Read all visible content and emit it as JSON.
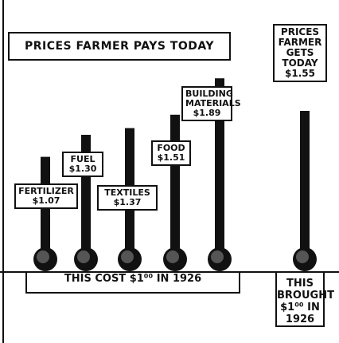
{
  "chart_data": {
    "type": "bar",
    "title": "PRICES FARMER PAYS TODAY",
    "categories": [
      "FERTILIZER",
      "FUEL",
      "TEXTILES",
      "FOOD",
      "BUILDING MATERIALS"
    ],
    "values": [
      1.07,
      1.3,
      1.37,
      1.51,
      1.89
    ],
    "value_labels": [
      "$1.07",
      "$1.30",
      "$1.37",
      "$1.51",
      "$1.89"
    ],
    "color": "#111111",
    "base_caption": "THIS COST $1⁰⁰ IN 1926",
    "farmer": {
      "label": "PRICES FARMER GETS TODAY",
      "value": 1.55,
      "value_label": "$1.55",
      "caption": "THIS BROUGHT $1⁰⁰ IN 1926"
    }
  }
}
